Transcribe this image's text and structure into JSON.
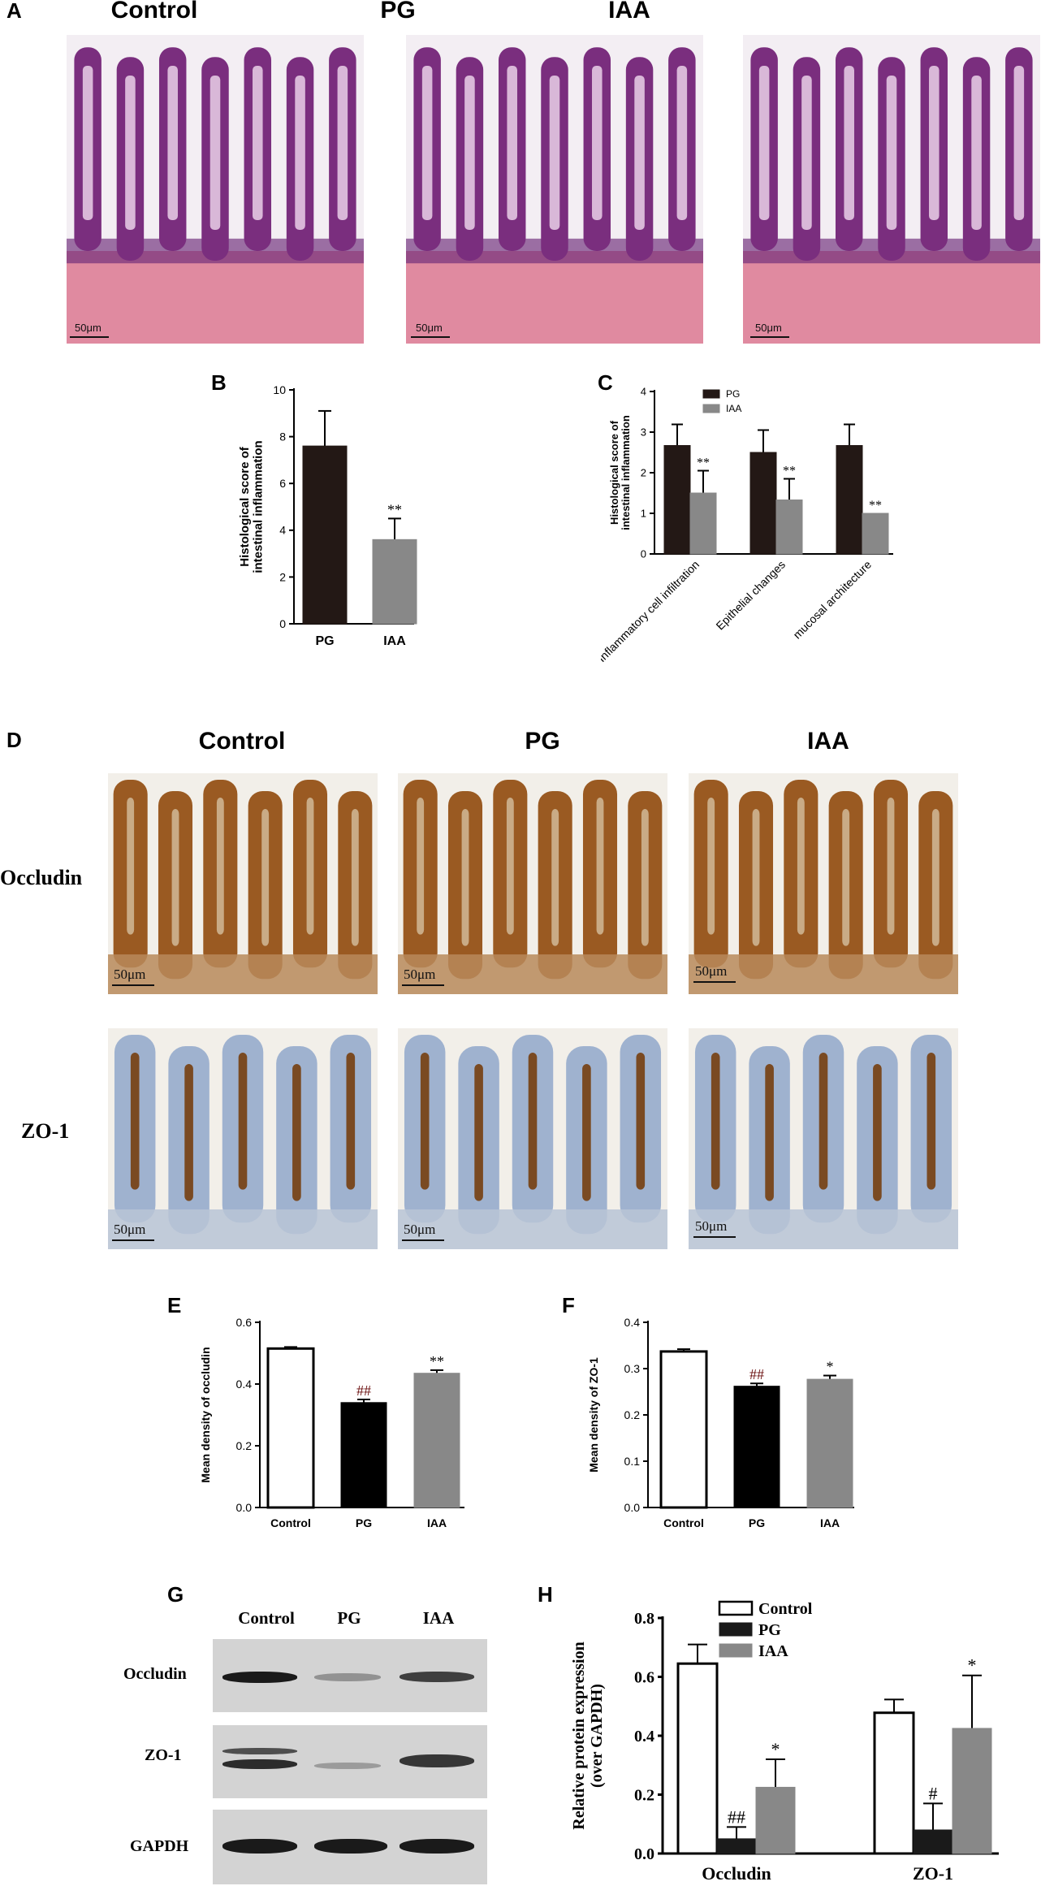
{
  "panels": {
    "a": {
      "letter": "A",
      "columns": [
        "Control",
        "PG",
        "IAA"
      ],
      "scale_label": "50μm"
    },
    "b": {
      "letter": "B"
    },
    "c": {
      "letter": "C"
    },
    "d": {
      "letter": "D",
      "columns": [
        "Control",
        "PG",
        "IAA"
      ],
      "rows": [
        "Occludin",
        "ZO-1"
      ],
      "scale_label": "50μm"
    },
    "e": {
      "letter": "E"
    },
    "f": {
      "letter": "F"
    },
    "g": {
      "letter": "G",
      "columns": [
        "Control",
        "PG",
        "IAA"
      ],
      "rows": [
        "Occludin",
        "ZO-1",
        "GAPDH"
      ],
      "band_intensity": {
        "Occludin": [
          1.0,
          0.35,
          0.8
        ],
        "ZO-1": [
          0.9,
          0.3,
          0.85
        ],
        "GAPDH": [
          1.0,
          1.0,
          1.0
        ]
      }
    },
    "h": {
      "letter": "H"
    }
  },
  "colors": {
    "he_stain": "#7a2e7e",
    "he_muscle": "#e08aa0",
    "dab": "#9a5a22",
    "hematoxylin_bg": "#9fb2cf",
    "pg_bar": "#231815",
    "iaa_bar": "#888888",
    "control_bar": "#ffffff"
  },
  "chart_data": [
    {
      "id": "B",
      "type": "bar",
      "categories": [
        "PG",
        "IAA"
      ],
      "values": [
        7.6,
        3.6
      ],
      "errors": [
        1.5,
        0.9
      ],
      "annotations": [
        "",
        "**"
      ],
      "bar_colors": [
        "#231815",
        "#888888"
      ],
      "ylabel": "Histological score of\nintestinal inflammation",
      "ylim": [
        0,
        10
      ],
      "yticks": [
        0,
        2,
        4,
        6,
        8,
        10
      ]
    },
    {
      "id": "C",
      "type": "bar",
      "categories": [
        "Inflammatory cell infiltration",
        "Epithelial changes",
        "mucosal architecture"
      ],
      "series": [
        {
          "name": "PG",
          "color": "#231815",
          "values": [
            2.67,
            2.5,
            2.67
          ],
          "errors": [
            0.52,
            0.55,
            0.52
          ],
          "annotations": [
            "",
            "",
            ""
          ]
        },
        {
          "name": "IAA",
          "color": "#888888",
          "values": [
            1.5,
            1.33,
            1.0
          ],
          "errors": [
            0.55,
            0.52,
            0.0
          ],
          "annotations": [
            "**",
            "**",
            "**"
          ]
        }
      ],
      "ylabel": "Histological score of\nintestinal inflammation",
      "ylim": [
        0,
        4
      ],
      "yticks": [
        0,
        1,
        2,
        3,
        4
      ],
      "legend": "top-left"
    },
    {
      "id": "E",
      "type": "bar",
      "categories": [
        "Control",
        "PG",
        "IAA"
      ],
      "values": [
        0.515,
        0.34,
        0.435
      ],
      "errors": [
        0.005,
        0.01,
        0.01
      ],
      "annotations": [
        "",
        "##",
        "**"
      ],
      "annotation_colors": [
        "#000000",
        "#6b0f0f",
        "#000000"
      ],
      "bar_colors": [
        "#ffffff",
        "#000000",
        "#888888"
      ],
      "ylabel": "Mean density of occludin",
      "ylim": [
        0,
        0.6
      ],
      "yticks": [
        0.0,
        0.2,
        0.4,
        0.6
      ]
    },
    {
      "id": "F",
      "type": "bar",
      "categories": [
        "Control",
        "PG",
        "IAA"
      ],
      "values": [
        0.337,
        0.262,
        0.277
      ],
      "errors": [
        0.005,
        0.006,
        0.008
      ],
      "annotations": [
        "",
        "##",
        "*"
      ],
      "annotation_colors": [
        "#000000",
        "#6b0f0f",
        "#000000"
      ],
      "bar_colors": [
        "#ffffff",
        "#000000",
        "#888888"
      ],
      "ylabel": "Mean density of ZO-1",
      "ylim": [
        0,
        0.4
      ],
      "yticks": [
        0.0,
        0.1,
        0.2,
        0.3,
        0.4
      ]
    },
    {
      "id": "H",
      "type": "bar",
      "categories": [
        "Occludin",
        "ZO-1"
      ],
      "series": [
        {
          "name": "Control",
          "color": "#ffffff",
          "values": [
            0.645,
            0.478
          ],
          "errors": [
            0.065,
            0.045
          ],
          "annotations": [
            "",
            ""
          ]
        },
        {
          "name": "PG",
          "color": "#1a1a1a",
          "values": [
            0.05,
            0.08
          ],
          "errors": [
            0.04,
            0.09
          ],
          "annotations": [
            "##",
            "#"
          ]
        },
        {
          "name": "IAA",
          "color": "#888888",
          "values": [
            0.225,
            0.425
          ],
          "errors": [
            0.095,
            0.18
          ],
          "annotations": [
            "*",
            "*"
          ]
        }
      ],
      "ylabel": "Relative protein expression\n(over GAPDH)",
      "ylim": [
        0,
        0.8
      ],
      "yticks": [
        0.0,
        0.2,
        0.4,
        0.6,
        0.8
      ],
      "legend": "top-left"
    }
  ]
}
